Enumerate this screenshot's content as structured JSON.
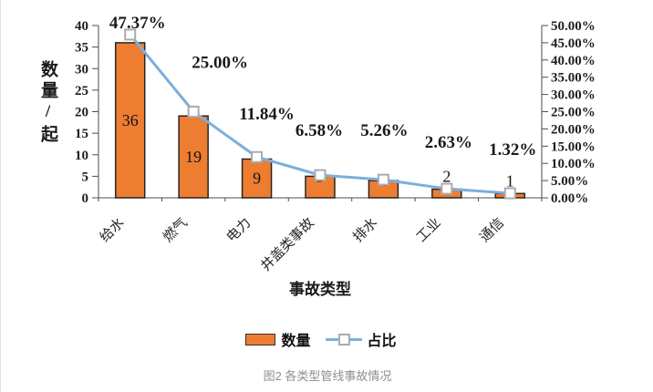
{
  "caption": "图2 各类型管线事故情况",
  "chart_data": {
    "type": "bar",
    "subtype": "bar+line combo",
    "title": "",
    "categories": [
      "给水",
      "燃气",
      "电力",
      "井盖类事故",
      "排水",
      "工业",
      "通信"
    ],
    "series": [
      {
        "name": "数量",
        "type": "bar",
        "axis": "left",
        "values": [
          36,
          19,
          9,
          5,
          4,
          2,
          1
        ],
        "data_labels": [
          "36",
          "19",
          "9",
          "5",
          "4",
          "2",
          "1"
        ],
        "color": "#ED7D31",
        "border_color": "#262626"
      },
      {
        "name": "占比",
        "type": "line",
        "axis": "right",
        "values_pct": [
          47.37,
          25.0,
          11.84,
          6.58,
          5.26,
          2.63,
          1.32
        ],
        "data_labels": [
          "47.37%",
          "25.00%",
          "11.84%",
          "6.58%",
          "5.26%",
          "2.63%",
          "1.32%"
        ],
        "color": "#7CAFDD",
        "marker": "square",
        "marker_color": "#ABABAB"
      }
    ],
    "left_axis": {
      "title": "数量/起",
      "min": 0,
      "max": 40,
      "step": 5,
      "tick_labels": [
        "0",
        "5",
        "10",
        "15",
        "20",
        "25",
        "30",
        "35",
        "40"
      ]
    },
    "right_axis": {
      "min": 0,
      "max": 50,
      "step": 5,
      "tick_labels": [
        "0.00%",
        "5.00%",
        "10.00%",
        "15.00%",
        "20.00%",
        "25.00%",
        "30.00%",
        "35.00%",
        "40.00%",
        "45.00%",
        "50.00%"
      ]
    },
    "xlabel": "事故类型",
    "grid": false,
    "legend_position": "bottom"
  }
}
